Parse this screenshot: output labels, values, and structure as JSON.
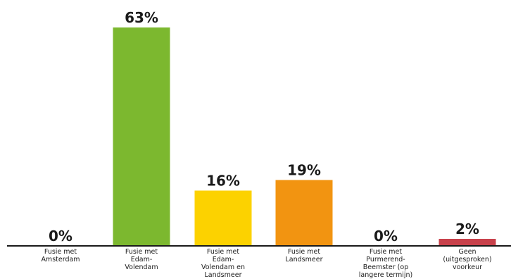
{
  "chart_data": {
    "type": "bar",
    "categories": [
      [
        "Fusie met",
        "Amsterdam"
      ],
      [
        "Fusie met",
        "Edam-",
        "Volendam"
      ],
      [
        "Fusie met",
        "Edam-",
        "Volendam en",
        "Landsmeer"
      ],
      [
        "Fusie met",
        "Landsmeer"
      ],
      [
        "Fusie met",
        "Purmerend-",
        "Beemster (op",
        "langere termijn)"
      ],
      [
        "Geen",
        "(uitgesproken)",
        "voorkeur"
      ]
    ],
    "values": [
      0,
      63,
      16,
      19,
      0,
      2
    ],
    "value_labels": [
      "0%",
      "63%",
      "16%",
      "19%",
      "0%",
      "2%"
    ],
    "colors": [
      "#7cb82f",
      "#7cb82f",
      "#fcd200",
      "#f29411",
      "#7cb82f",
      "#c8414b"
    ],
    "baseline_color": "#1a1a1a",
    "ylim": [
      0,
      63
    ],
    "grid": false,
    "legend": "none",
    "title": "",
    "xlabel": "",
    "ylabel": ""
  }
}
